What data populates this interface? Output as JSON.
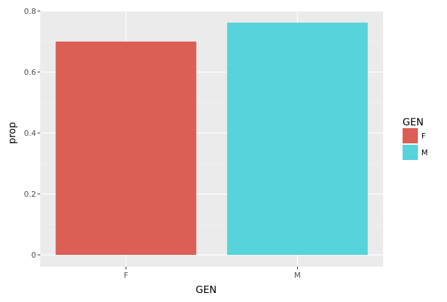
{
  "chart_data": {
    "type": "bar",
    "categories": [
      "F",
      "M"
    ],
    "values": [
      0.7,
      0.762
    ],
    "xlabel": "GEN",
    "ylabel": "prop",
    "ylim": [
      0,
      0.8
    ],
    "yticks": [
      0,
      0.2,
      0.4,
      0.6,
      0.8
    ],
    "ytick_labels": [
      "0",
      "0.2",
      "0.4",
      "0.6",
      "0.8"
    ],
    "grid": true,
    "legend": {
      "title": "GEN",
      "placement": "right",
      "items": [
        {
          "label": "F",
          "color": "#dc5f55"
        },
        {
          "label": "M",
          "color": "#56d3db"
        }
      ]
    },
    "colors": {
      "panel_background": "#ebebeb",
      "grid_major": "#ffffff",
      "grid_minor": "#f5f5f5"
    }
  }
}
